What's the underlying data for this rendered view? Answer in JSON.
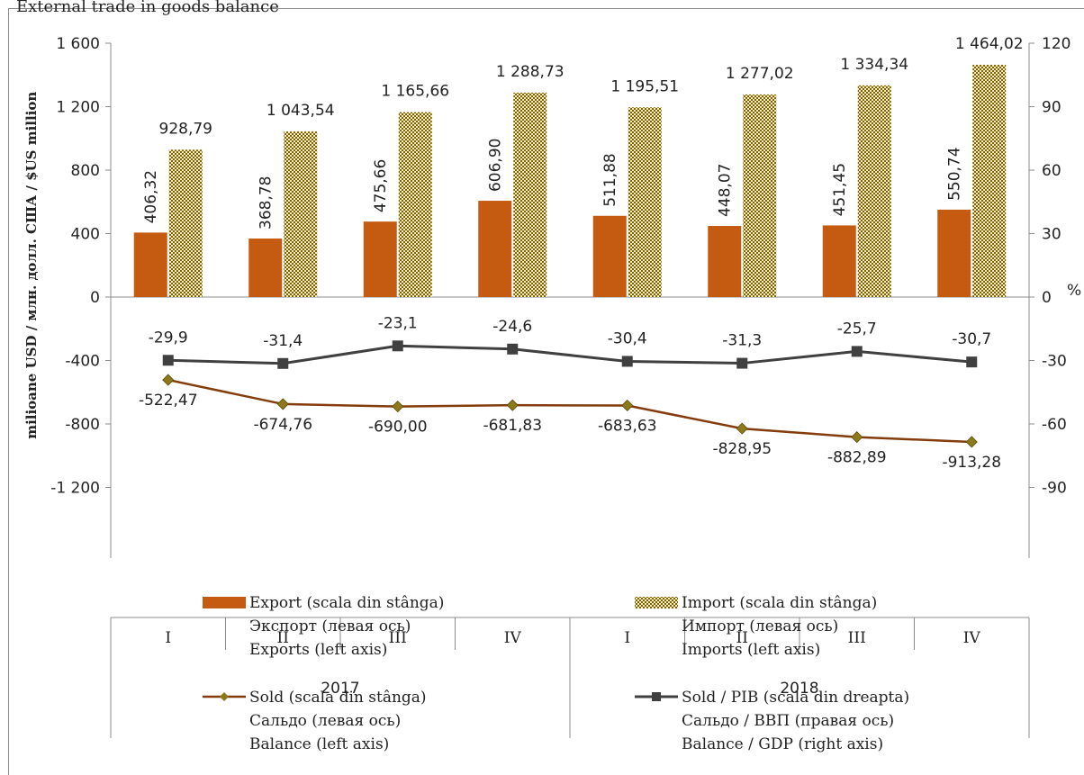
{
  "page_title": "External trade in goods balance",
  "colors": {
    "export": "#c55a11",
    "import_a": "#7f6000",
    "import_b": "#f3edc8",
    "balance": "#843c0c",
    "balance_marker": "#8c7a1a",
    "balance_gdp": "#404040"
  },
  "chart_data": {
    "type": "bar",
    "categories": [
      "I",
      "II",
      "III",
      "IV",
      "I",
      "II",
      "III",
      "IV"
    ],
    "year_groups": [
      {
        "label": "2017",
        "span": 4
      },
      {
        "label": "2018",
        "span": 4
      }
    ],
    "left_axis": {
      "label": "milioane USD / млн. долл. США / $US million",
      "ylim": [
        -1200,
        1600
      ],
      "ticks": [
        1600,
        1200,
        800,
        400,
        0,
        -400,
        -800,
        -1200
      ],
      "tick_labels": [
        "1 600",
        "1 200",
        "800",
        "400",
        "0",
        "-400",
        "-800",
        "-1 200"
      ]
    },
    "right_axis": {
      "unit": "%",
      "ylim": [
        -90,
        120
      ],
      "ticks": [
        120,
        90,
        60,
        30,
        0,
        -30,
        -60,
        -90
      ],
      "tick_labels": [
        "120",
        "90",
        "60",
        "30",
        "0",
        "-30",
        "-60",
        "-90"
      ]
    },
    "series": [
      {
        "name": "Export (scala din stânga)",
        "name_ru": "Экспорт (левая ось)",
        "name_en": "Exports (left axis)",
        "type": "bar",
        "axis": "left",
        "values": [
          406.32,
          368.78,
          475.66,
          606.9,
          511.88,
          448.07,
          451.45,
          550.74
        ],
        "labels": [
          "406,32",
          "368,78",
          "475,66",
          "606,90",
          "511,88",
          "448,07",
          "451,45",
          "550,74"
        ]
      },
      {
        "name": "Import (scala din stânga)",
        "name_ru": "Импорт (левая ось)",
        "name_en": "Imports (left axis)",
        "type": "bar",
        "axis": "left",
        "values": [
          928.79,
          1043.54,
          1165.66,
          1288.73,
          1195.51,
          1277.02,
          1334.34,
          1464.02
        ],
        "labels": [
          "928,79",
          "1 043,54",
          "1 165,66",
          "1 288,73",
          "1 195,51",
          "1 277,02",
          "1 334,34",
          "1 464,02"
        ]
      },
      {
        "name": "Sold (scala din stânga)",
        "name_ru": "Сальдо (левая ось)",
        "name_en": "Balance (left axis)",
        "type": "line",
        "axis": "left",
        "values": [
          -522.47,
          -674.76,
          -690.0,
          -681.83,
          -683.63,
          -828.95,
          -882.89,
          -913.28
        ],
        "labels": [
          "-522,47",
          "-674,76",
          "-690,00",
          "-681,83",
          "-683,63",
          "-828,95",
          "-882,89",
          "-913,28"
        ]
      },
      {
        "name": "Sold / PIB (scala din dreapta)",
        "name_ru": "Сальдо / ВВП (правая ось)",
        "name_en": "Balance / GDP (right axis)",
        "type": "line",
        "axis": "right",
        "values": [
          -29.9,
          -31.4,
          -23.1,
          -24.6,
          -30.4,
          -31.3,
          -25.7,
          -30.7
        ],
        "labels": [
          "-29,9",
          "-31,4",
          "-23,1",
          "-24,6",
          "-30,4",
          "-31,3",
          "-25,7",
          "-30,7"
        ]
      }
    ],
    "legend_placement": "bottom",
    "grid": false
  }
}
